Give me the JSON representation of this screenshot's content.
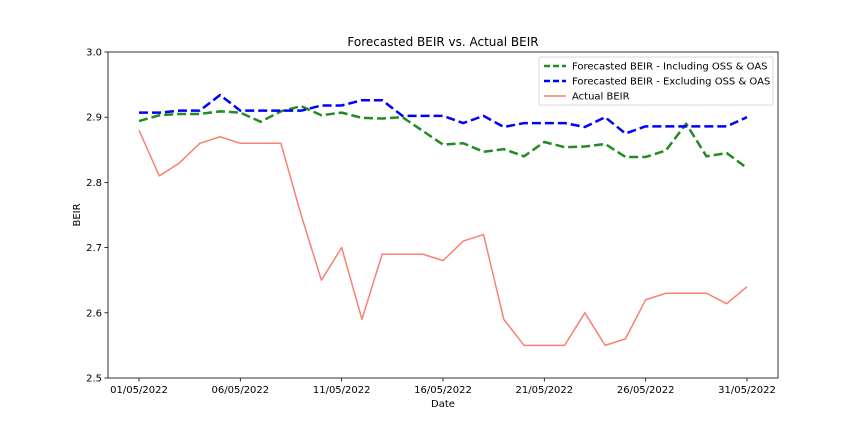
{
  "chart_data": {
    "type": "line",
    "title": "Forecasted BEIR vs. Actual BEIR",
    "xlabel": "Date",
    "ylabel": "BEIR",
    "ylim": [
      2.5,
      3.0
    ],
    "yticks": [
      "2.5",
      "2.6",
      "2.7",
      "2.8",
      "2.9",
      "3.0"
    ],
    "xticks": [
      "01/05/2022",
      "06/05/2022",
      "11/05/2022",
      "16/05/2022",
      "21/05/2022",
      "26/05/2022",
      "31/05/2022"
    ],
    "x": [
      "2022-05-01",
      "2022-05-02",
      "2022-05-03",
      "2022-05-04",
      "2022-05-05",
      "2022-05-06",
      "2022-05-07",
      "2022-05-08",
      "2022-05-09",
      "2022-05-10",
      "2022-05-11",
      "2022-05-12",
      "2022-05-13",
      "2022-05-14",
      "2022-05-15",
      "2022-05-16",
      "2022-05-17",
      "2022-05-18",
      "2022-05-19",
      "2022-05-20",
      "2022-05-21",
      "2022-05-22",
      "2022-05-23",
      "2022-05-24",
      "2022-05-25",
      "2022-05-26",
      "2022-05-27",
      "2022-05-28",
      "2022-05-29",
      "2022-05-30",
      "2022-05-31"
    ],
    "legend_position": "top-right",
    "grid": false,
    "series": [
      {
        "name": "Forecasted BEIR - Including OSS & OAS",
        "color": "#228b22",
        "style": "dashed",
        "values": [
          2.894,
          2.903,
          2.905,
          2.905,
          2.909,
          2.907,
          2.893,
          2.909,
          2.917,
          2.903,
          2.907,
          2.899,
          2.898,
          2.9,
          2.879,
          2.858,
          2.86,
          2.847,
          2.851,
          2.84,
          2.862,
          2.854,
          2.855,
          2.859,
          2.839,
          2.839,
          2.849,
          2.89,
          2.84,
          2.845,
          2.822
        ]
      },
      {
        "name": "Forecasted BEIR - Excluding OSS & OAS",
        "color": "#0000ff",
        "style": "dashed",
        "values": [
          2.907,
          2.907,
          2.91,
          2.91,
          2.934,
          2.91,
          2.91,
          2.91,
          2.91,
          2.918,
          2.918,
          2.926,
          2.926,
          2.902,
          2.902,
          2.902,
          2.891,
          2.902,
          2.885,
          2.891,
          2.891,
          2.891,
          2.885,
          2.9,
          2.875,
          2.886,
          2.886,
          2.886,
          2.886,
          2.886,
          2.9
        ]
      },
      {
        "name": "Actual BEIR",
        "color": "#fa8072",
        "style": "solid",
        "values": [
          2.88,
          2.81,
          2.83,
          2.86,
          2.87,
          2.86,
          2.86,
          2.86,
          2.75,
          2.65,
          2.7,
          2.59,
          2.69,
          2.69,
          2.69,
          2.68,
          2.71,
          2.72,
          2.59,
          2.55,
          2.55,
          2.55,
          2.6,
          2.55,
          2.56,
          2.62,
          2.63,
          2.63,
          2.63,
          2.614,
          2.64
        ]
      }
    ]
  }
}
